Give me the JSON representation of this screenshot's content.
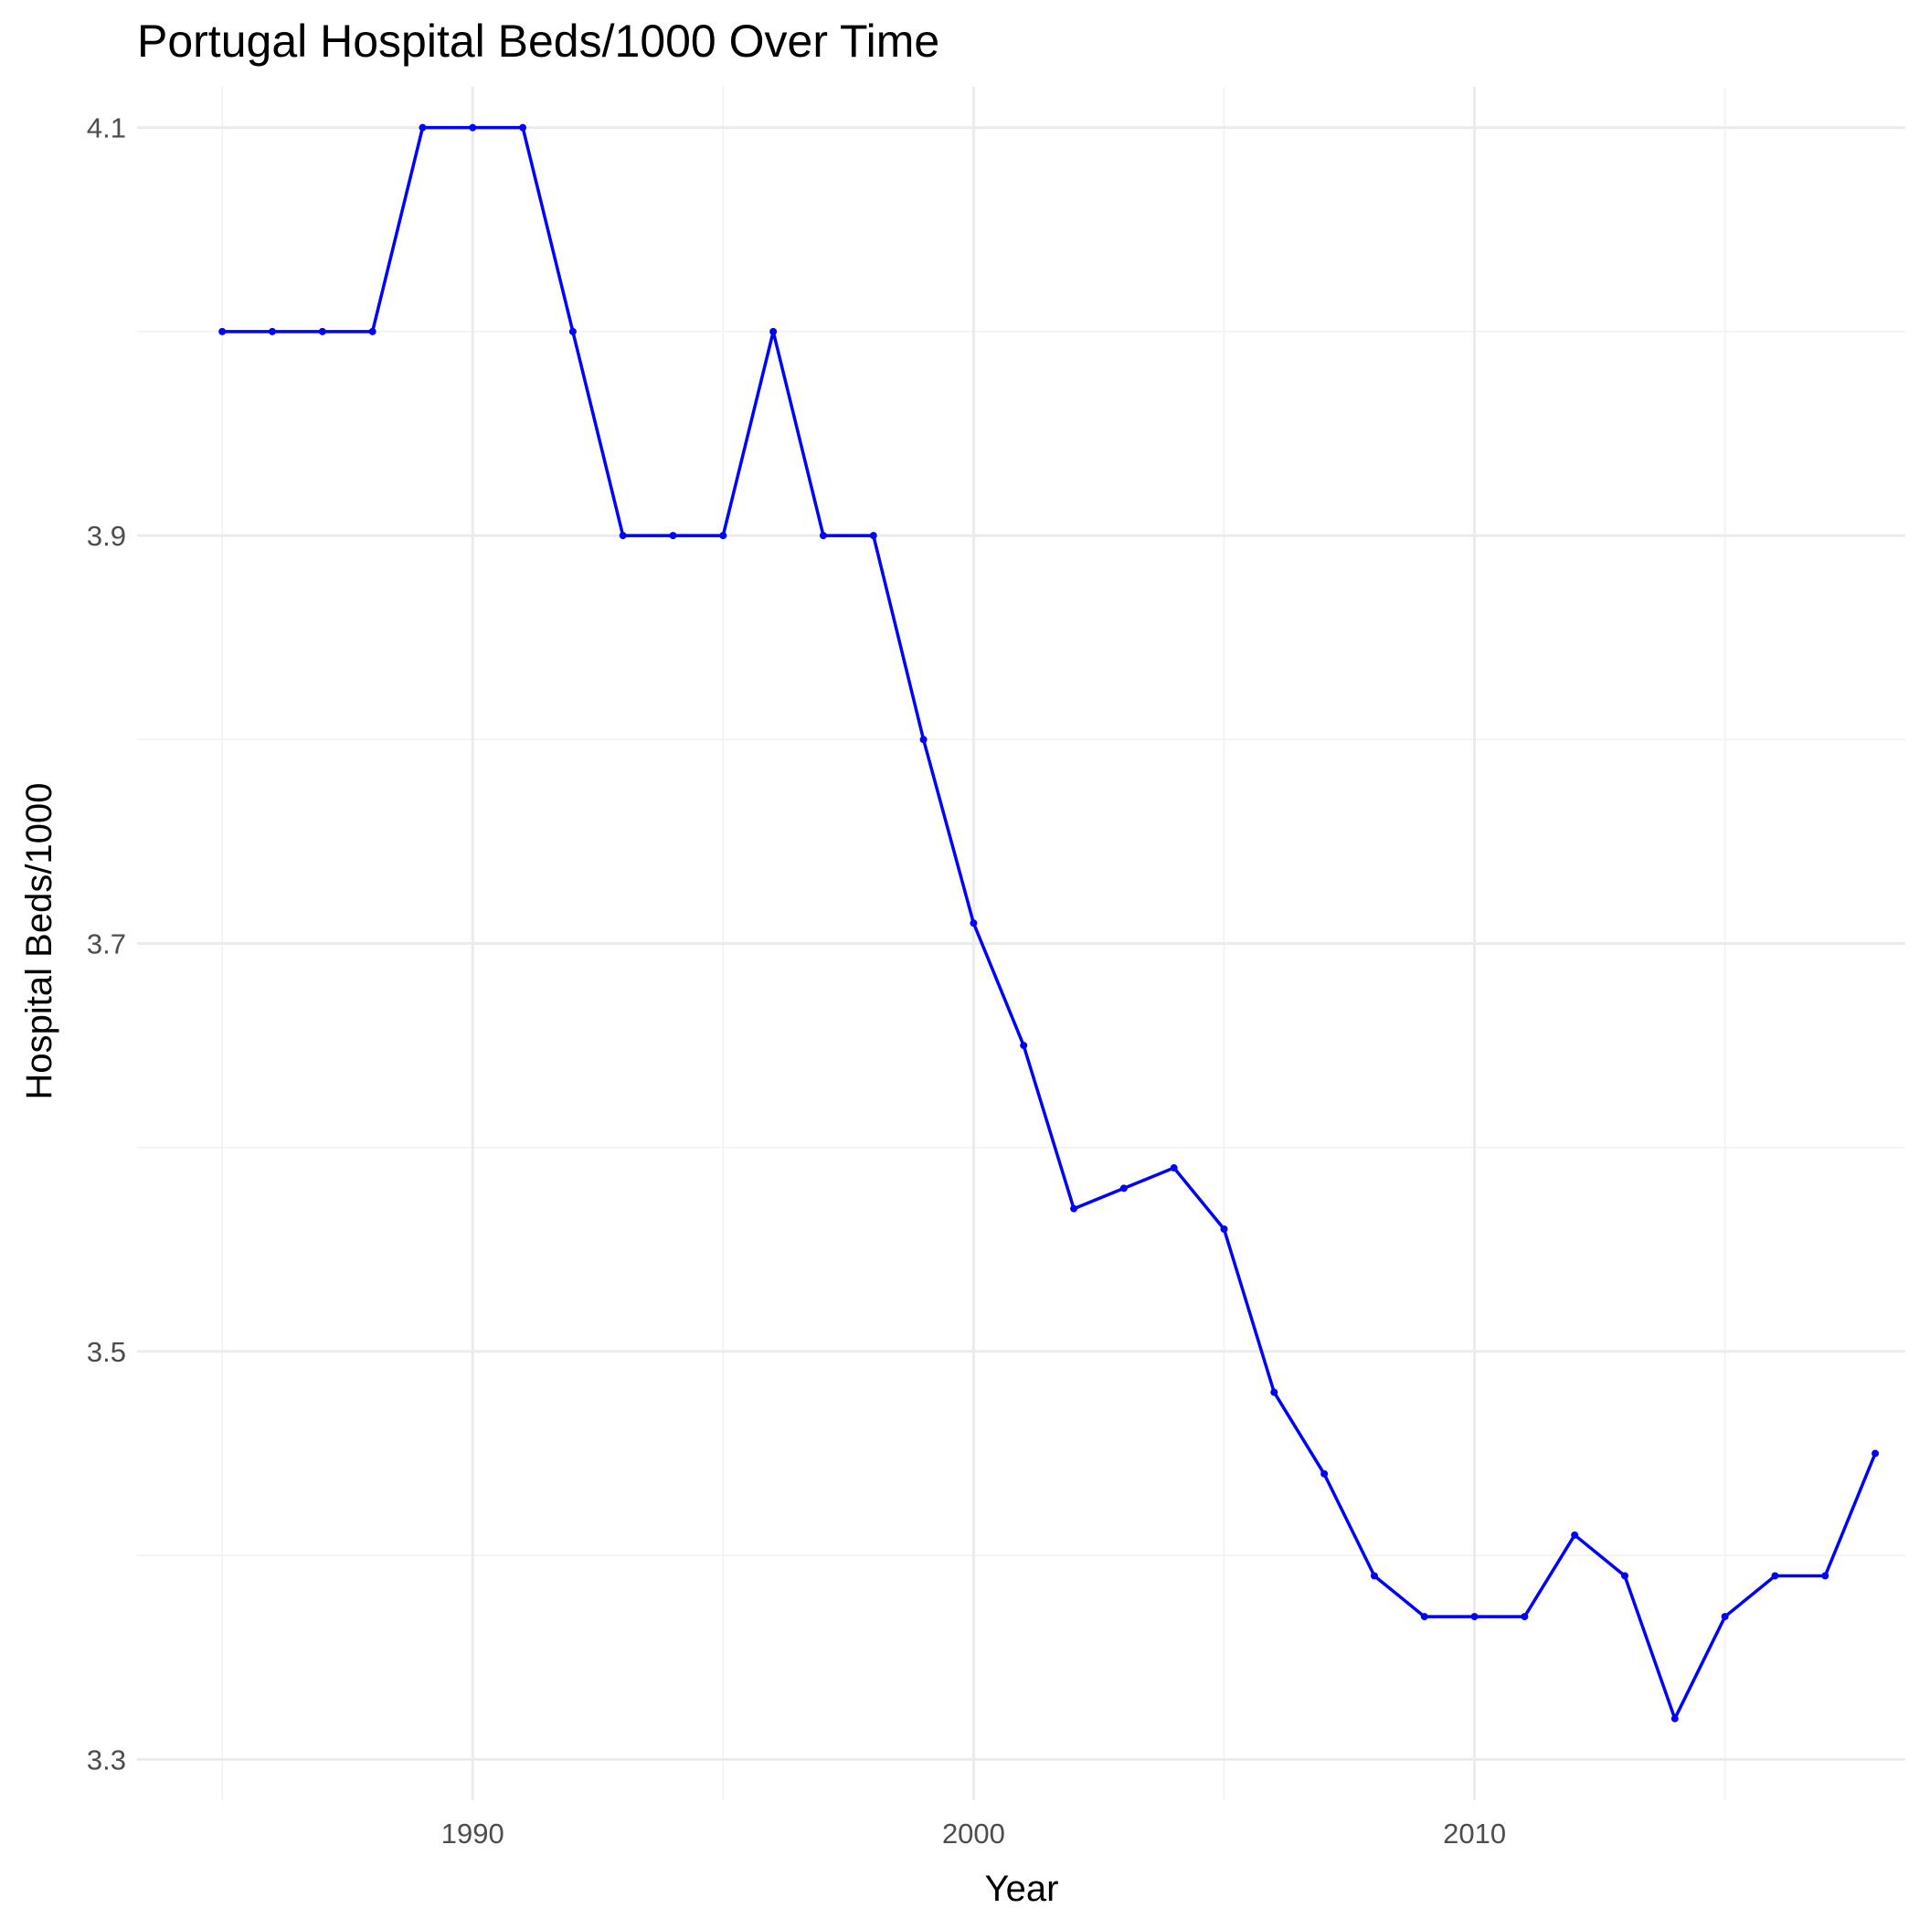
{
  "chart_data": {
    "type": "line",
    "title": "Portugal Hospital Beds/1000 Over Time",
    "xlabel": "Year",
    "ylabel": "Hospital Beds/1000",
    "xlim": [
      1983.3,
      2018.6
    ],
    "ylim": [
      3.28,
      4.12
    ],
    "x_ticks": [
      1990,
      2000,
      2010
    ],
    "x_minor_ticks": [
      1985,
      1995,
      2005,
      2015
    ],
    "y_ticks": [
      3.3,
      3.5,
      3.7,
      3.9,
      4.1
    ],
    "y_tick_labels": [
      "3.3",
      "3.5",
      "3.7",
      "3.9",
      "4.1"
    ],
    "y_minor_ticks": [
      3.4,
      3.6,
      3.8,
      4.0
    ],
    "grid": true,
    "legend": "none",
    "colors": {
      "line": "#0000ff",
      "grid": "#ebebeb",
      "text": "#000000",
      "tick_text": "#4d4d4d"
    },
    "series": [
      {
        "x": [
          1985,
          1986,
          1987,
          1988,
          1989,
          1990,
          1991,
          1992,
          1993,
          1994,
          1995,
          1996,
          1997,
          1998,
          1999,
          2000,
          2001,
          2002,
          2003,
          2004,
          2005,
          2006,
          2007,
          2008,
          2009,
          2010,
          2011,
          2012,
          2013,
          2014,
          2015,
          2016,
          2017,
          2018
        ],
        "values": [
          4.0,
          4.0,
          4.0,
          4.0,
          4.1,
          4.1,
          4.1,
          4.0,
          3.9,
          3.9,
          3.9,
          4.0,
          3.9,
          3.9,
          3.8,
          3.71,
          3.65,
          3.57,
          3.58,
          3.59,
          3.56,
          3.48,
          3.44,
          3.39,
          3.37,
          3.37,
          3.37,
          3.41,
          3.39,
          3.32,
          3.37,
          3.39,
          3.39,
          3.45
        ]
      }
    ]
  }
}
